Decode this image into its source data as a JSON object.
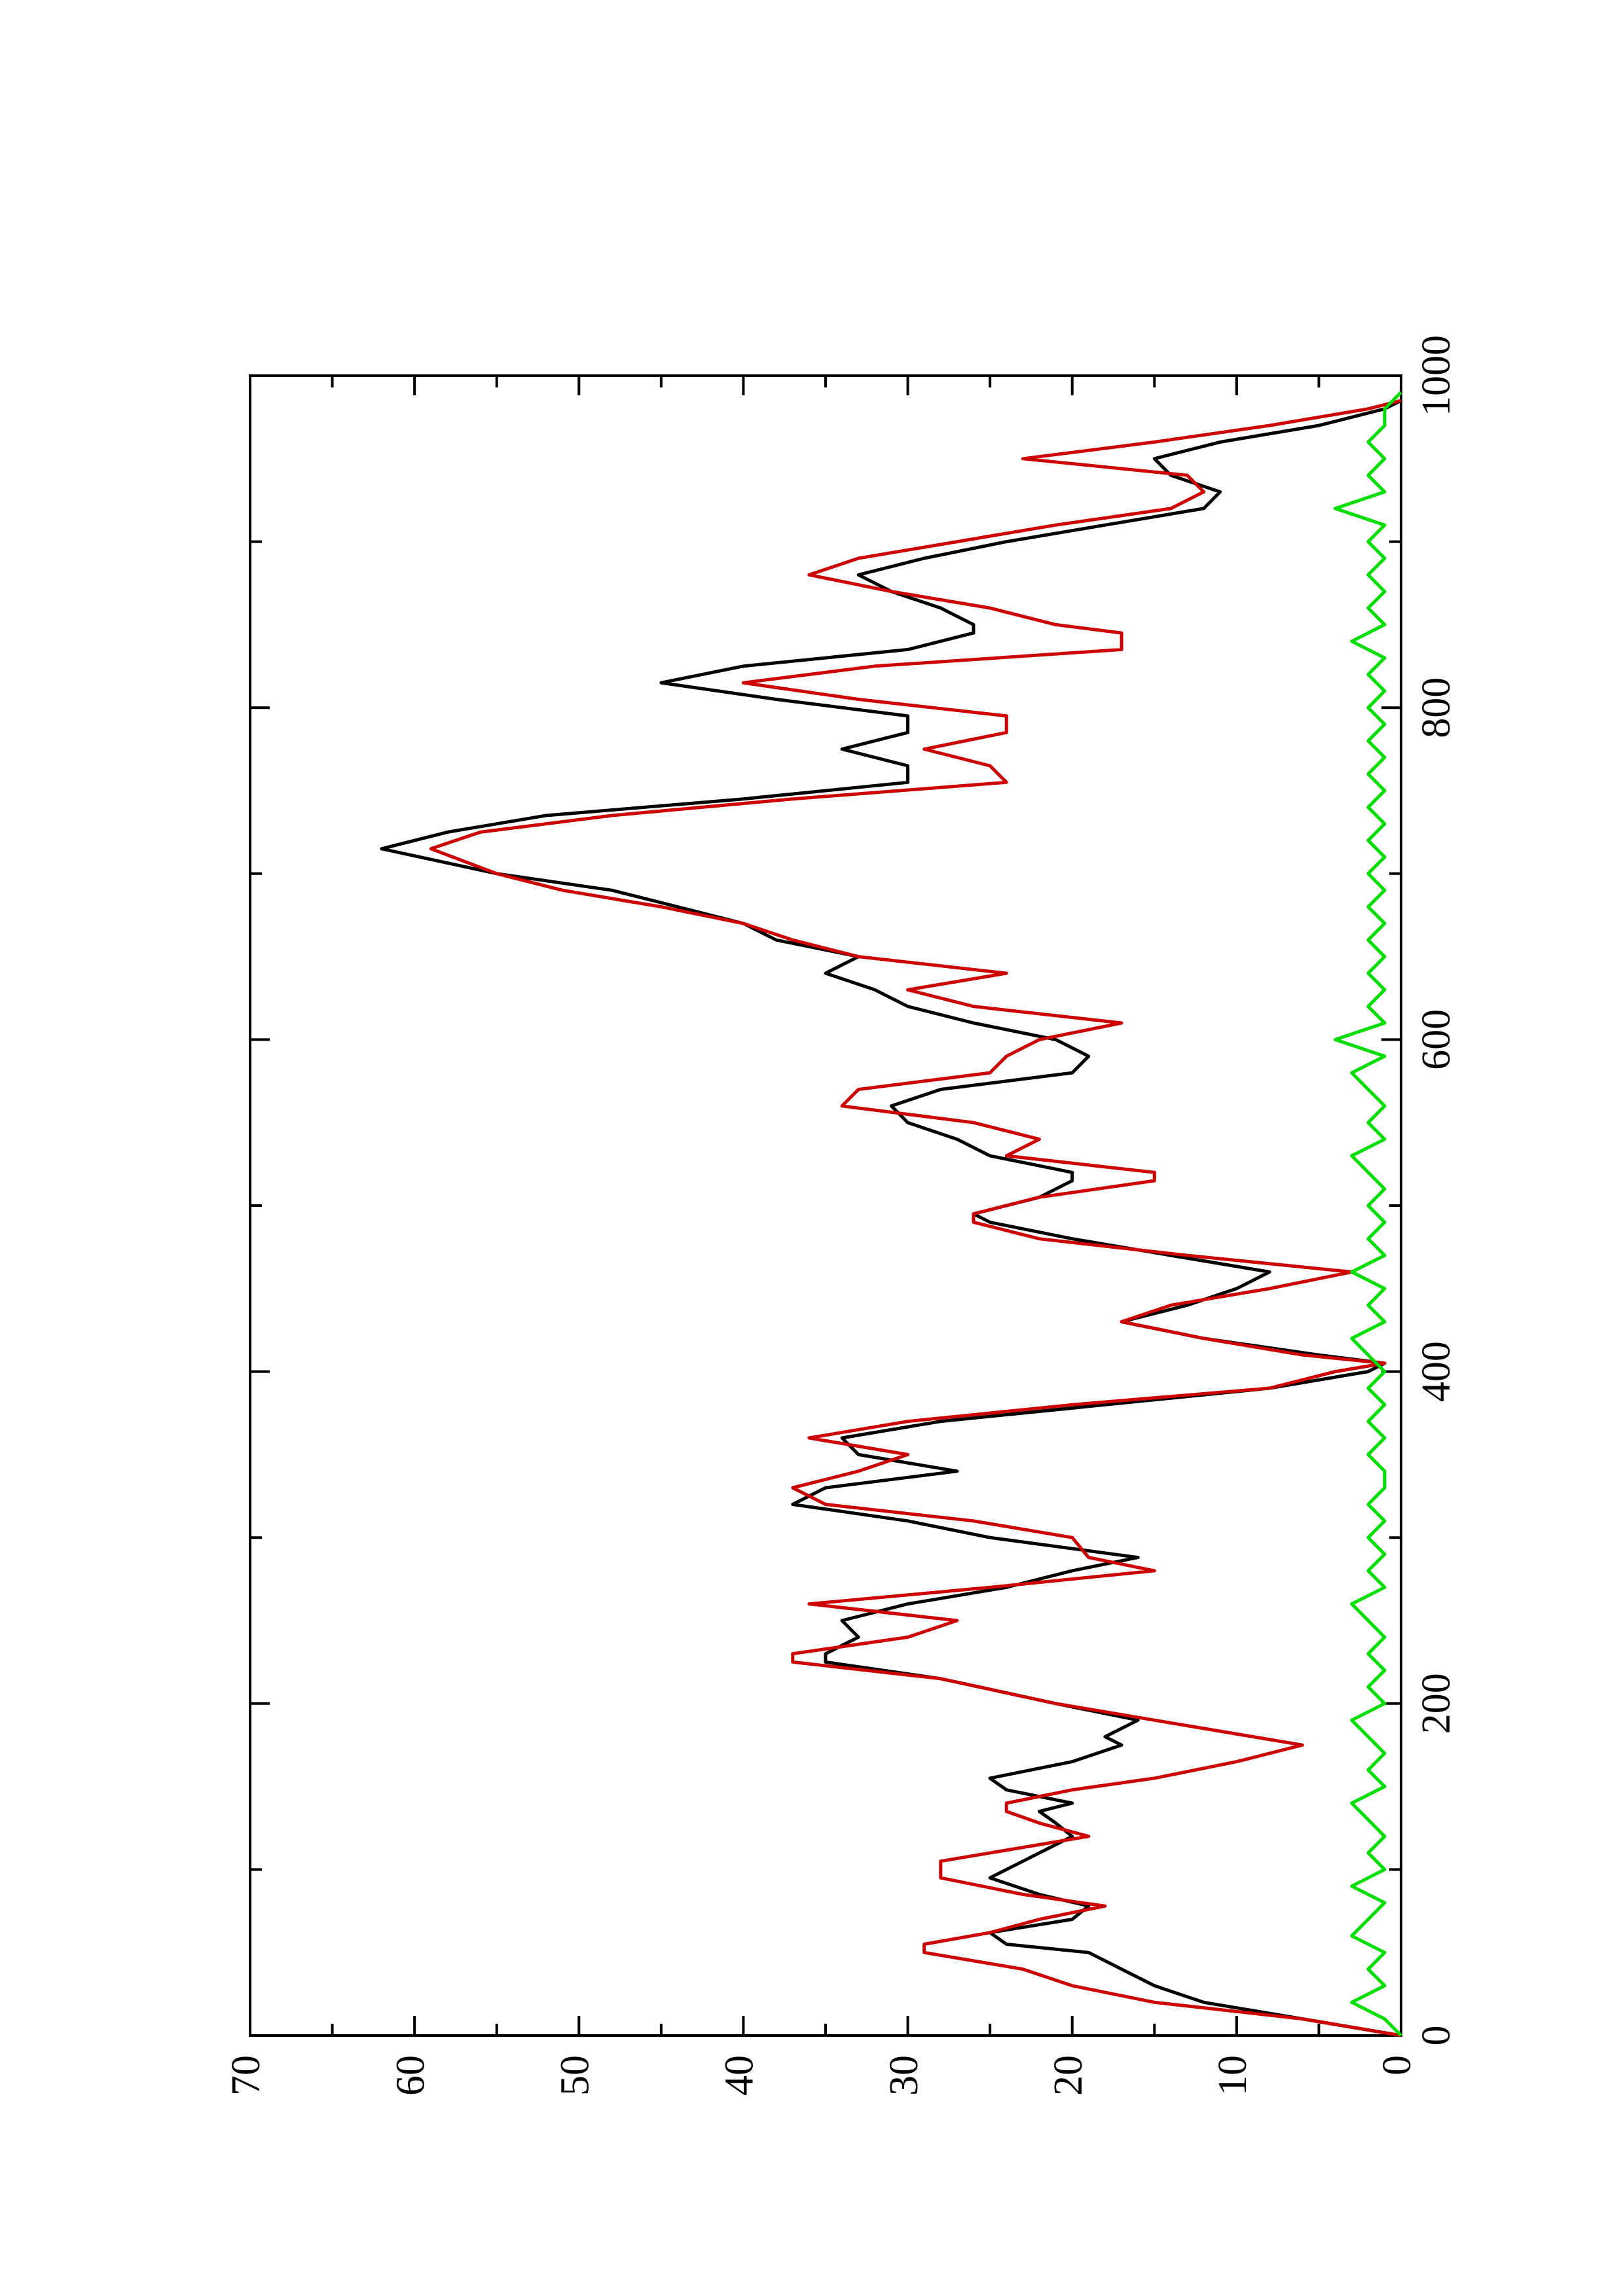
{
  "chart_data": {
    "type": "line",
    "orientation": "rotated-90-ccw",
    "title": "",
    "xlabel": "",
    "ylabel": "",
    "xlim": [
      0,
      1000
    ],
    "ylim": [
      0,
      70
    ],
    "x_ticks": [
      0,
      200,
      400,
      600,
      800,
      1000
    ],
    "y_ticks": [
      0,
      10,
      20,
      30,
      40,
      50,
      60,
      70
    ],
    "x_tick_labels": [
      "0",
      "200",
      "400",
      "600",
      "800",
      "1000"
    ],
    "y_tick_labels": [
      "0",
      "10",
      "20",
      "30",
      "40",
      "50",
      "60",
      "70"
    ],
    "grid": false,
    "legend": "none",
    "series": [
      {
        "color": "#000000",
        "points": [
          [
            0,
            0
          ],
          [
            10,
            6
          ],
          [
            20,
            12
          ],
          [
            30,
            15
          ],
          [
            40,
            17
          ],
          [
            50,
            19
          ],
          [
            55,
            24
          ],
          [
            62,
            25
          ],
          [
            70,
            20
          ],
          [
            78,
            19
          ],
          [
            85,
            22
          ],
          [
            95,
            25
          ],
          [
            105,
            23
          ],
          [
            115,
            21
          ],
          [
            120,
            20
          ],
          [
            128,
            21
          ],
          [
            135,
            22
          ],
          [
            140,
            20
          ],
          [
            148,
            24
          ],
          [
            155,
            25
          ],
          [
            165,
            20
          ],
          [
            175,
            17
          ],
          [
            180,
            18
          ],
          [
            190,
            16
          ],
          [
            200,
            21
          ],
          [
            215,
            28
          ],
          [
            225,
            35
          ],
          [
            230,
            35
          ],
          [
            240,
            33
          ],
          [
            250,
            34
          ],
          [
            260,
            30
          ],
          [
            270,
            24
          ],
          [
            280,
            20
          ],
          [
            288,
            16
          ],
          [
            300,
            25
          ],
          [
            310,
            30
          ],
          [
            320,
            37
          ],
          [
            330,
            35
          ],
          [
            340,
            27
          ],
          [
            350,
            33
          ],
          [
            360,
            34
          ],
          [
            370,
            28
          ],
          [
            380,
            18
          ],
          [
            390,
            8
          ],
          [
            400,
            2
          ],
          [
            405,
            1
          ],
          [
            410,
            5
          ],
          [
            420,
            12
          ],
          [
            430,
            17
          ],
          [
            440,
            13
          ],
          [
            450,
            10
          ],
          [
            460,
            8
          ],
          [
            470,
            14
          ],
          [
            480,
            20
          ],
          [
            490,
            25
          ],
          [
            495,
            26
          ],
          [
            505,
            22
          ],
          [
            515,
            20
          ],
          [
            520,
            20
          ],
          [
            530,
            25
          ],
          [
            540,
            27
          ],
          [
            550,
            30
          ],
          [
            560,
            31
          ],
          [
            570,
            28
          ],
          [
            580,
            20
          ],
          [
            590,
            19
          ],
          [
            600,
            21
          ],
          [
            610,
            26
          ],
          [
            620,
            30
          ],
          [
            630,
            32
          ],
          [
            640,
            35
          ],
          [
            650,
            33
          ],
          [
            660,
            38
          ],
          [
            670,
            40
          ],
          [
            680,
            44
          ],
          [
            690,
            48
          ],
          [
            700,
            55
          ],
          [
            715,
            62
          ],
          [
            725,
            58
          ],
          [
            735,
            52
          ],
          [
            745,
            40
          ],
          [
            755,
            30
          ],
          [
            765,
            30
          ],
          [
            775,
            34
          ],
          [
            785,
            30
          ],
          [
            795,
            30
          ],
          [
            805,
            38
          ],
          [
            815,
            45
          ],
          [
            825,
            40
          ],
          [
            835,
            30
          ],
          [
            845,
            26
          ],
          [
            850,
            26
          ],
          [
            860,
            28
          ],
          [
            870,
            31
          ],
          [
            880,
            33
          ],
          [
            890,
            29
          ],
          [
            900,
            24
          ],
          [
            910,
            18
          ],
          [
            920,
            12
          ],
          [
            930,
            11
          ],
          [
            940,
            14
          ],
          [
            950,
            15
          ],
          [
            960,
            11
          ],
          [
            970,
            5
          ],
          [
            980,
            1
          ],
          [
            985,
            0
          ]
        ]
      },
      {
        "color": "#cc0000",
        "points": [
          [
            0,
            0
          ],
          [
            10,
            6
          ],
          [
            20,
            15
          ],
          [
            30,
            20
          ],
          [
            40,
            23
          ],
          [
            50,
            29
          ],
          [
            55,
            29
          ],
          [
            62,
            25
          ],
          [
            70,
            22
          ],
          [
            78,
            18
          ],
          [
            85,
            23
          ],
          [
            95,
            28
          ],
          [
            105,
            28
          ],
          [
            115,
            22
          ],
          [
            120,
            19
          ],
          [
            128,
            22
          ],
          [
            135,
            24
          ],
          [
            140,
            24
          ],
          [
            148,
            20
          ],
          [
            155,
            15
          ],
          [
            165,
            10
          ],
          [
            175,
            6
          ],
          [
            180,
            9
          ],
          [
            190,
            15
          ],
          [
            200,
            21
          ],
          [
            215,
            28
          ],
          [
            225,
            37
          ],
          [
            230,
            37
          ],
          [
            240,
            30
          ],
          [
            250,
            27
          ],
          [
            260,
            36
          ],
          [
            270,
            25
          ],
          [
            280,
            15
          ],
          [
            288,
            19
          ],
          [
            300,
            20
          ],
          [
            310,
            26
          ],
          [
            320,
            35
          ],
          [
            330,
            37
          ],
          [
            340,
            33
          ],
          [
            350,
            30
          ],
          [
            360,
            36
          ],
          [
            370,
            30
          ],
          [
            380,
            20
          ],
          [
            390,
            8
          ],
          [
            400,
            4
          ],
          [
            405,
            1
          ],
          [
            410,
            6
          ],
          [
            420,
            12
          ],
          [
            430,
            17
          ],
          [
            440,
            14
          ],
          [
            450,
            8
          ],
          [
            460,
            3
          ],
          [
            470,
            13
          ],
          [
            480,
            22
          ],
          [
            490,
            26
          ],
          [
            495,
            26
          ],
          [
            505,
            22
          ],
          [
            515,
            15
          ],
          [
            520,
            15
          ],
          [
            530,
            24
          ],
          [
            540,
            22
          ],
          [
            550,
            26
          ],
          [
            560,
            34
          ],
          [
            570,
            33
          ],
          [
            580,
            25
          ],
          [
            590,
            24
          ],
          [
            600,
            22
          ],
          [
            610,
            17
          ],
          [
            620,
            26
          ],
          [
            630,
            30
          ],
          [
            640,
            24
          ],
          [
            650,
            33
          ],
          [
            660,
            37
          ],
          [
            670,
            40
          ],
          [
            680,
            45
          ],
          [
            690,
            51
          ],
          [
            700,
            55
          ],
          [
            715,
            59
          ],
          [
            725,
            56
          ],
          [
            735,
            48
          ],
          [
            745,
            37
          ],
          [
            755,
            24
          ],
          [
            765,
            25
          ],
          [
            775,
            29
          ],
          [
            785,
            24
          ],
          [
            795,
            24
          ],
          [
            805,
            33
          ],
          [
            815,
            40
          ],
          [
            825,
            32
          ],
          [
            835,
            17
          ],
          [
            845,
            17
          ],
          [
            850,
            21
          ],
          [
            860,
            25
          ],
          [
            870,
            31
          ],
          [
            880,
            36
          ],
          [
            890,
            33
          ],
          [
            900,
            27
          ],
          [
            910,
            21
          ],
          [
            920,
            14
          ],
          [
            930,
            12
          ],
          [
            940,
            13
          ],
          [
            950,
            23
          ],
          [
            960,
            15
          ],
          [
            970,
            8
          ],
          [
            980,
            2
          ],
          [
            985,
            0
          ]
        ]
      },
      {
        "color": "#00dd00",
        "points": [
          [
            0,
            0
          ],
          [
            10,
            1
          ],
          [
            20,
            3
          ],
          [
            30,
            1
          ],
          [
            40,
            2
          ],
          [
            50,
            1
          ],
          [
            60,
            3
          ],
          [
            70,
            2
          ],
          [
            80,
            1
          ],
          [
            90,
            3
          ],
          [
            100,
            1
          ],
          [
            110,
            2
          ],
          [
            120,
            1
          ],
          [
            130,
            2
          ],
          [
            140,
            3
          ],
          [
            150,
            1
          ],
          [
            160,
            2
          ],
          [
            170,
            1
          ],
          [
            180,
            2
          ],
          [
            190,
            3
          ],
          [
            200,
            1
          ],
          [
            210,
            2
          ],
          [
            220,
            1
          ],
          [
            230,
            2
          ],
          [
            240,
            1
          ],
          [
            250,
            2
          ],
          [
            260,
            3
          ],
          [
            270,
            1
          ],
          [
            280,
            2
          ],
          [
            290,
            1
          ],
          [
            300,
            2
          ],
          [
            310,
            1
          ],
          [
            320,
            2
          ],
          [
            330,
            1
          ],
          [
            340,
            1
          ],
          [
            350,
            2
          ],
          [
            360,
            1
          ],
          [
            370,
            2
          ],
          [
            380,
            1
          ],
          [
            390,
            2
          ],
          [
            400,
            1
          ],
          [
            410,
            2
          ],
          [
            420,
            3
          ],
          [
            430,
            1
          ],
          [
            440,
            2
          ],
          [
            450,
            1
          ],
          [
            460,
            3
          ],
          [
            470,
            1
          ],
          [
            480,
            2
          ],
          [
            490,
            1
          ],
          [
            500,
            2
          ],
          [
            510,
            1
          ],
          [
            520,
            2
          ],
          [
            530,
            3
          ],
          [
            540,
            1
          ],
          [
            550,
            2
          ],
          [
            560,
            1
          ],
          [
            570,
            2
          ],
          [
            580,
            3
          ],
          [
            590,
            1
          ],
          [
            600,
            4
          ],
          [
            610,
            1
          ],
          [
            620,
            2
          ],
          [
            630,
            1
          ],
          [
            640,
            2
          ],
          [
            650,
            1
          ],
          [
            660,
            2
          ],
          [
            670,
            1
          ],
          [
            680,
            2
          ],
          [
            690,
            1
          ],
          [
            700,
            2
          ],
          [
            710,
            1
          ],
          [
            720,
            2
          ],
          [
            730,
            1
          ],
          [
            740,
            2
          ],
          [
            750,
            1
          ],
          [
            760,
            2
          ],
          [
            770,
            1
          ],
          [
            780,
            2
          ],
          [
            790,
            1
          ],
          [
            800,
            2
          ],
          [
            810,
            1
          ],
          [
            820,
            2
          ],
          [
            830,
            1
          ],
          [
            840,
            3
          ],
          [
            850,
            1
          ],
          [
            860,
            2
          ],
          [
            870,
            1
          ],
          [
            880,
            2
          ],
          [
            890,
            1
          ],
          [
            900,
            2
          ],
          [
            910,
            1
          ],
          [
            920,
            4
          ],
          [
            930,
            1
          ],
          [
            940,
            2
          ],
          [
            950,
            1
          ],
          [
            960,
            2
          ],
          [
            970,
            1
          ],
          [
            980,
            1
          ],
          [
            990,
            0
          ]
        ]
      }
    ]
  }
}
